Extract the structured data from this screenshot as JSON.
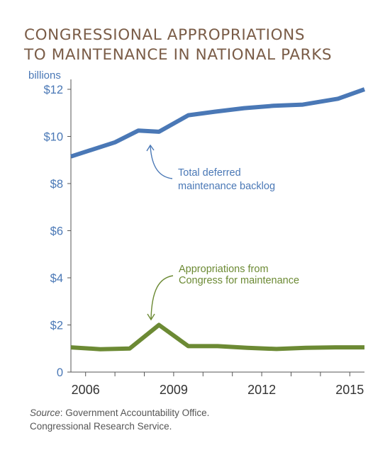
{
  "title_lines": [
    "CONGRESSIONAL APPROPRIATIONS",
    "TO MAINTENANCE IN NATIONAL PARKS"
  ],
  "source": {
    "label": "Source",
    "line1_rest": ": Government Accountability Office.",
    "line2": "Congressional Research Service."
  },
  "colors": {
    "blue": "#4a78b6",
    "green": "#6c8a34",
    "title": "#7a5c47",
    "axis": "#555555"
  },
  "chart_data": {
    "type": "line",
    "title": "CONGRESSIONAL APPROPRIATIONS TO MAINTENANCE IN NATIONAL PARKS",
    "unit_label": "billions",
    "xlim": [
      2005.5,
      2015.5
    ],
    "ylim": [
      0,
      12
    ],
    "x_ticks": [
      2006,
      2007,
      2008,
      2009,
      2010,
      2011,
      2012,
      2013,
      2014,
      2015
    ],
    "x_tick_labels": [
      {
        "x": 2006,
        "label": "2006"
      },
      {
        "x": 2009,
        "label": "2009"
      },
      {
        "x": 2012,
        "label": "2012"
      },
      {
        "x": 2015,
        "label": "2015"
      }
    ],
    "y_ticks": [
      {
        "y": 0,
        "label": "0"
      },
      {
        "y": 2,
        "label": "$2"
      },
      {
        "y": 4,
        "label": "$4"
      },
      {
        "y": 6,
        "label": "$6"
      },
      {
        "y": 8,
        "label": "$8"
      },
      {
        "y": 10,
        "label": "$10"
      },
      {
        "y": 12,
        "label": "$12"
      }
    ],
    "grid": false,
    "series": [
      {
        "key": "backlog",
        "name_lines": [
          "Total deferred",
          "maintenance backlog"
        ],
        "color": "#4a78b6",
        "x": [
          2005.5,
          2007.0,
          2007.8,
          2008.5,
          2009.5,
          2010.4,
          2011.4,
          2012.4,
          2013.4,
          2014.6,
          2015.5
        ],
        "y": [
          9.15,
          9.75,
          10.25,
          10.2,
          10.9,
          11.05,
          11.2,
          11.3,
          11.35,
          11.6,
          12.0
        ]
      },
      {
        "key": "appropriations",
        "name_lines": [
          "Appropriations from",
          "Congress for maintenance"
        ],
        "color": "#6c8a34",
        "x": [
          2005.5,
          2006.5,
          2007.5,
          2008.5,
          2009.5,
          2010.5,
          2011.5,
          2012.5,
          2013.5,
          2014.5,
          2015.5
        ],
        "y": [
          1.05,
          0.97,
          1.0,
          2.0,
          1.1,
          1.1,
          1.03,
          0.98,
          1.03,
          1.05,
          1.05
        ]
      }
    ]
  }
}
